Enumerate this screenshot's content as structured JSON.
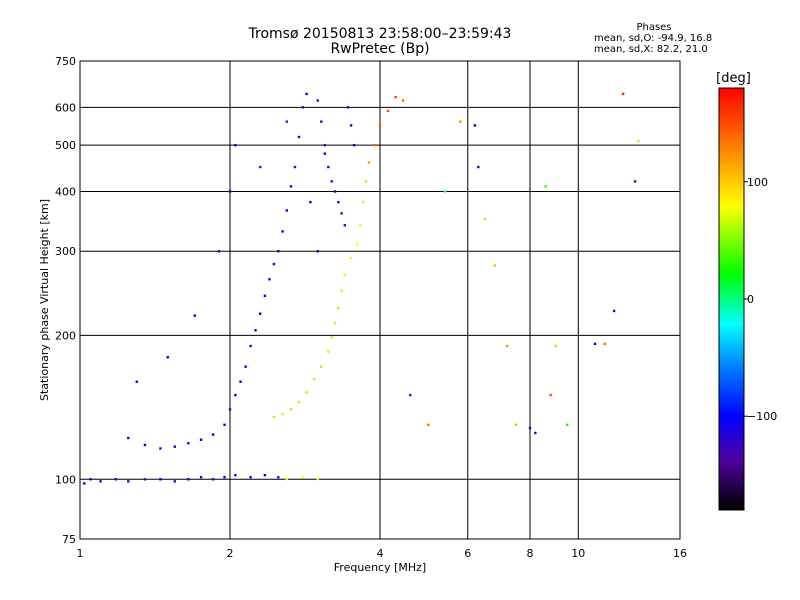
{
  "title": "Tromsø 20150813 23:58:00–23:59:43",
  "subtitle": "RwPretec (Bp)",
  "legend": {
    "heading": "Phases",
    "line_o": "mean, sd,O: -94.9, 16.8",
    "line_x": "mean, sd,X:  82.2, 21.0"
  },
  "colorbar": {
    "label": "[deg]",
    "min": -180,
    "max": 180,
    "ticks": [
      {
        "value": 100,
        "label": "100"
      },
      {
        "value": 0,
        "label": "0"
      },
      {
        "value": -100,
        "label": "−100"
      }
    ]
  },
  "chart_data": {
    "type": "scatter",
    "title": "Tromsø 20150813 23:58:00–23:59:43",
    "subtitle": "RwPretec (Bp)",
    "xlabel": "Frequency [MHz]",
    "ylabel": "Stationary phase Virtual Height [km]",
    "xscale": "log",
    "yscale": "log",
    "xlim": [
      1,
      16
    ],
    "ylim": [
      75,
      750
    ],
    "xticks": [
      {
        "value": 1,
        "label": "1"
      },
      {
        "value": 2,
        "label": "2"
      },
      {
        "value": 4,
        "label": "4"
      },
      {
        "value": 6,
        "label": "6"
      },
      {
        "value": 8,
        "label": "8"
      },
      {
        "value": 10,
        "label": "10"
      },
      {
        "value": 16,
        "label": "16"
      }
    ],
    "yticks": [
      {
        "value": 75,
        "label": "75"
      },
      {
        "value": 100,
        "label": "100"
      },
      {
        "value": 200,
        "label": "200"
      },
      {
        "value": 300,
        "label": "300"
      },
      {
        "value": 400,
        "label": "400"
      },
      {
        "value": 500,
        "label": "500"
      },
      {
        "value": 600,
        "label": "600"
      },
      {
        "value": 750,
        "label": "750"
      }
    ],
    "grid": true,
    "color_by": "phase [deg]",
    "series": [
      {
        "mode": "O",
        "points": [
          [
            1.02,
            98,
            -110
          ],
          [
            1.05,
            100,
            -105
          ],
          [
            1.1,
            99,
            -120
          ],
          [
            1.18,
            100,
            -100
          ],
          [
            1.25,
            99,
            -115
          ],
          [
            1.35,
            100,
            -125
          ],
          [
            1.45,
            100,
            -108
          ],
          [
            1.55,
            99,
            -118
          ],
          [
            1.65,
            100,
            -102
          ],
          [
            1.75,
            101,
            -112
          ],
          [
            1.85,
            100,
            -98
          ],
          [
            1.95,
            101,
            -110
          ],
          [
            2.05,
            102,
            -105
          ],
          [
            2.2,
            101,
            -95
          ],
          [
            2.35,
            102,
            -100
          ],
          [
            2.5,
            101,
            -90
          ],
          [
            1.25,
            122,
            -110
          ],
          [
            1.35,
            118,
            -105
          ],
          [
            1.45,
            116,
            -112
          ],
          [
            1.55,
            117,
            -100
          ],
          [
            1.65,
            119,
            -108
          ],
          [
            1.75,
            121,
            -102
          ],
          [
            1.85,
            124,
            -110
          ],
          [
            1.95,
            130,
            -98
          ],
          [
            2.0,
            140,
            -105
          ],
          [
            2.05,
            150,
            -112
          ],
          [
            2.1,
            160,
            -100
          ],
          [
            2.15,
            172,
            -108
          ],
          [
            2.2,
            190,
            -95
          ],
          [
            2.25,
            205,
            -110
          ],
          [
            2.3,
            222,
            -102
          ],
          [
            2.35,
            242,
            -105
          ],
          [
            2.4,
            262,
            -98
          ],
          [
            2.45,
            282,
            -110
          ],
          [
            2.5,
            300,
            -100
          ],
          [
            2.55,
            330,
            -108
          ],
          [
            2.6,
            365,
            -102
          ],
          [
            2.65,
            410,
            -110
          ],
          [
            2.7,
            450,
            -96
          ],
          [
            2.75,
            520,
            -105
          ],
          [
            2.8,
            600,
            -112
          ],
          [
            2.85,
            640,
            -100
          ],
          [
            1.3,
            160,
            -110
          ],
          [
            1.5,
            180,
            -105
          ],
          [
            1.7,
            220,
            -100
          ],
          [
            1.9,
            300,
            -108
          ],
          [
            2.0,
            400,
            -102
          ],
          [
            2.05,
            500,
            -110
          ],
          [
            2.3,
            450,
            -90
          ],
          [
            2.6,
            560,
            -85
          ],
          [
            2.9,
            380,
            -100
          ],
          [
            3.0,
            620,
            -130
          ],
          [
            3.05,
            560,
            -125
          ],
          [
            3.1,
            500,
            -135
          ],
          [
            3.15,
            450,
            -120
          ],
          [
            3.2,
            420,
            -128
          ],
          [
            3.25,
            400,
            -118
          ],
          [
            3.3,
            380,
            -122
          ],
          [
            3.35,
            360,
            -130
          ],
          [
            3.4,
            340,
            -125
          ],
          [
            3.45,
            600,
            -115
          ],
          [
            3.5,
            550,
            -120
          ],
          [
            3.55,
            500,
            -110
          ],
          [
            3.0,
            300,
            -105
          ],
          [
            3.1,
            480,
            -100
          ]
        ]
      },
      {
        "mode": "X",
        "points": [
          [
            2.45,
            135,
            60
          ],
          [
            2.55,
            137,
            65
          ],
          [
            2.65,
            140,
            58
          ],
          [
            2.75,
            145,
            62
          ],
          [
            2.85,
            152,
            55
          ],
          [
            2.95,
            162,
            60
          ],
          [
            3.05,
            172,
            58
          ],
          [
            3.15,
            185,
            62
          ],
          [
            3.2,
            198,
            65
          ],
          [
            3.25,
            212,
            60
          ],
          [
            3.3,
            228,
            58
          ],
          [
            3.35,
            248,
            62
          ],
          [
            3.4,
            268,
            70
          ],
          [
            3.5,
            290,
            75
          ],
          [
            3.6,
            310,
            80
          ],
          [
            3.65,
            340,
            85
          ],
          [
            3.7,
            380,
            90
          ],
          [
            3.75,
            420,
            100
          ],
          [
            3.8,
            460,
            120
          ],
          [
            3.9,
            500,
            140
          ],
          [
            4.0,
            550,
            150
          ],
          [
            4.15,
            590,
            145
          ],
          [
            4.3,
            630,
            150
          ],
          [
            4.45,
            620,
            140
          ],
          [
            2.6,
            100,
            75
          ],
          [
            2.8,
            101,
            80
          ],
          [
            3.0,
            100,
            85
          ]
        ]
      },
      {
        "mode": "scattered",
        "points": [
          [
            6.2,
            550,
            -110
          ],
          [
            6.3,
            450,
            -105
          ],
          [
            6.5,
            350,
            60
          ],
          [
            6.8,
            280,
            110
          ],
          [
            7.2,
            190,
            120
          ],
          [
            7.5,
            130,
            45
          ],
          [
            8.0,
            128,
            -110
          ],
          [
            8.2,
            125,
            -120
          ],
          [
            8.6,
            410,
            30
          ],
          [
            8.8,
            150,
            150
          ],
          [
            9.0,
            190,
            100
          ],
          [
            9.5,
            130,
            20
          ],
          [
            10.8,
            192,
            -100
          ],
          [
            11.3,
            192,
            140
          ],
          [
            11.8,
            225,
            -110
          ],
          [
            12.3,
            640,
            170
          ],
          [
            13.0,
            420,
            -140
          ],
          [
            13.2,
            510,
            60
          ],
          [
            5.4,
            400,
            -10
          ],
          [
            5.8,
            560,
            130
          ],
          [
            5.0,
            130,
            140
          ],
          [
            4.6,
            150,
            -90
          ]
        ]
      }
    ]
  }
}
